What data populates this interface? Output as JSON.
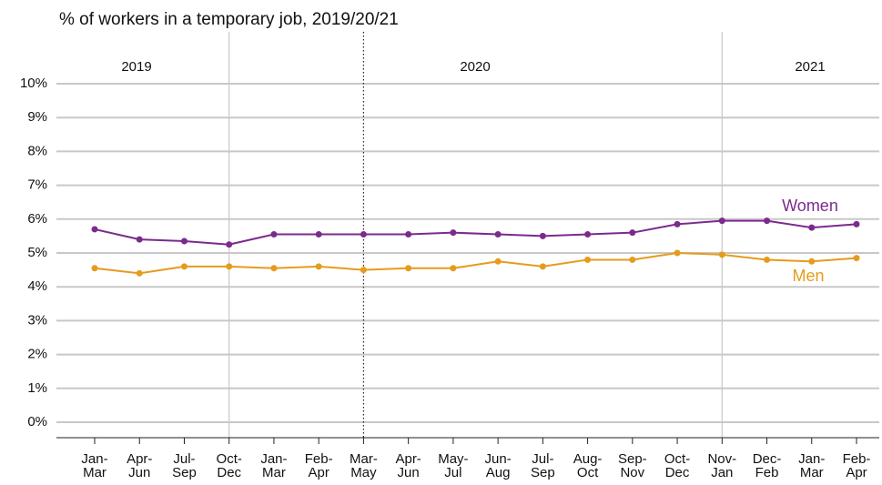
{
  "chart_data": {
    "type": "line",
    "title": "% of workers in a temporary job, 2019/20/21",
    "year_labels": [
      "2019",
      "2020",
      "2021"
    ],
    "categories": [
      "Jan- Mar",
      "Apr- Jun",
      "Jul- Sep",
      "Oct- Dec",
      "Jan- Mar",
      "Feb- Apr",
      "Mar- May",
      "Apr- Jun",
      "May- Jul",
      "Jun- Aug",
      "Jul- Sep",
      "Aug- Oct",
      "Sep- Nov",
      "Oct- Dec",
      "Nov- Jan",
      "Dec- Feb",
      "Jan- Mar",
      "Feb- Apr"
    ],
    "series": [
      {
        "name": "Women",
        "color": "#7b2a8e",
        "values": [
          5.7,
          5.4,
          5.35,
          5.25,
          5.55,
          5.55,
          5.55,
          5.55,
          5.6,
          5.55,
          5.5,
          5.55,
          5.6,
          5.85,
          5.95,
          5.95,
          5.75,
          5.85
        ]
      },
      {
        "name": "Men",
        "color": "#e69b1d",
        "values": [
          4.55,
          4.4,
          4.6,
          4.6,
          4.55,
          4.6,
          4.5,
          4.55,
          4.55,
          4.75,
          4.6,
          4.8,
          4.8,
          5.0,
          4.95,
          4.8,
          4.75,
          4.85
        ]
      }
    ],
    "ylim": [
      0,
      10
    ],
    "yticks": [
      {
        "value": 0,
        "label": "0%"
      },
      {
        "value": 1,
        "label": "1%"
      },
      {
        "value": 2,
        "label": "2%"
      },
      {
        "value": 3,
        "label": "3%"
      },
      {
        "value": 4,
        "label": "4%"
      },
      {
        "value": 5,
        "label": "5%"
      },
      {
        "value": 6,
        "label": "6%"
      },
      {
        "value": 7,
        "label": "7%"
      },
      {
        "value": 8,
        "label": "8%"
      },
      {
        "value": 9,
        "label": "9%"
      },
      {
        "value": 10,
        "label": "10%"
      }
    ],
    "grid": true
  }
}
